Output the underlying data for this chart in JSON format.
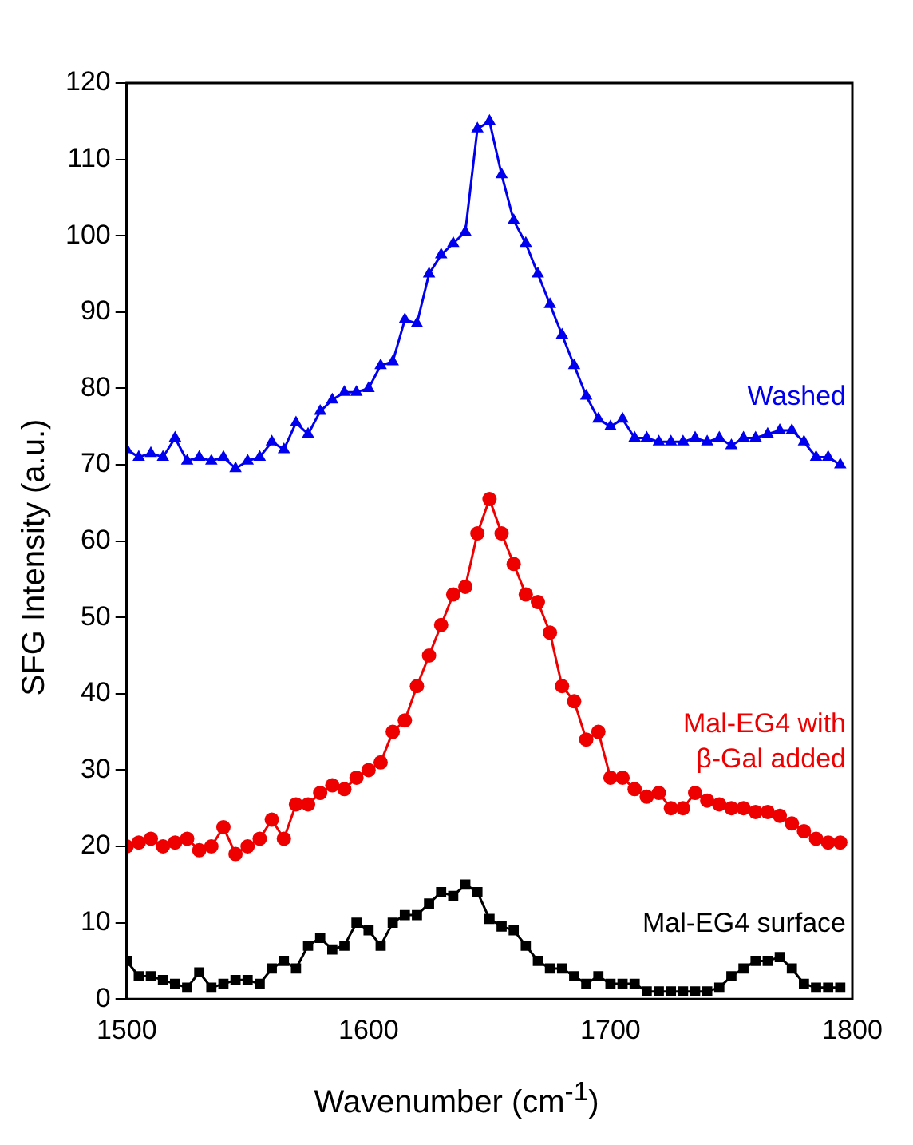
{
  "chart_data": {
    "type": "line",
    "xlabel": "Wavenumber (cm$^{-1}$)",
    "ylabel": "SFG Intensity (a.u.)",
    "x": [
      1500,
      1505,
      1510,
      1515,
      1520,
      1525,
      1530,
      1535,
      1540,
      1545,
      1550,
      1555,
      1560,
      1565,
      1570,
      1575,
      1580,
      1585,
      1590,
      1595,
      1600,
      1605,
      1610,
      1615,
      1620,
      1625,
      1630,
      1635,
      1640,
      1645,
      1650,
      1655,
      1660,
      1665,
      1670,
      1675,
      1680,
      1685,
      1690,
      1695,
      1700,
      1705,
      1710,
      1715,
      1720,
      1725,
      1730,
      1735,
      1740,
      1745,
      1750,
      1755,
      1760,
      1765,
      1770,
      1775,
      1780,
      1785,
      1790,
      1795
    ],
    "series": [
      {
        "name": "Washed",
        "color": "#0000ee",
        "marker": "triangle",
        "values": [
          72,
          71,
          71.5,
          71,
          73.5,
          70.5,
          71,
          70.5,
          71,
          69.5,
          70.5,
          71,
          73,
          72,
          75.5,
          74,
          77,
          78.5,
          79.5,
          79.5,
          80,
          83,
          83.5,
          89,
          88.5,
          95,
          97.5,
          99,
          100.5,
          114,
          115,
          108,
          102,
          99,
          95,
          91,
          87,
          83,
          79,
          76,
          75,
          76,
          73.5,
          73.5,
          73,
          73,
          73,
          73.5,
          73,
          73.5,
          72.5,
          73.5,
          73.5,
          74,
          74.5,
          74.5,
          73,
          71,
          71,
          70
        ]
      },
      {
        "name": "Mal-EG4 with\nβ-Gal added",
        "color": "#ee0000",
        "marker": "circle",
        "values": [
          20,
          20.5,
          21,
          20,
          20.5,
          21,
          19.5,
          20,
          22.5,
          19,
          20,
          21,
          23.5,
          21,
          25.5,
          25.5,
          27,
          28,
          27.5,
          29,
          30,
          31,
          35,
          36.5,
          41,
          45,
          49,
          53,
          54,
          61,
          65.5,
          61,
          57,
          53,
          52,
          48,
          41,
          39,
          34,
          35,
          29,
          29,
          27.5,
          26.5,
          27,
          25,
          25,
          27,
          26,
          25.5,
          25,
          25,
          24.5,
          24.5,
          24,
          23,
          22,
          21,
          20.5,
          20.5
        ]
      },
      {
        "name": "Mal-EG4 surface",
        "color": "#000000",
        "marker": "square",
        "values": [
          5,
          3,
          3,
          2.5,
          2,
          1.5,
          3.5,
          1.5,
          2,
          2.5,
          2.5,
          2,
          4,
          5,
          4,
          7,
          8,
          6.5,
          7,
          10,
          9,
          7,
          10,
          11,
          11,
          12.5,
          14,
          13.5,
          15,
          14,
          10.5,
          9.5,
          9,
          7,
          5,
          4,
          4,
          3,
          2,
          3,
          2,
          2,
          2,
          1,
          1,
          1,
          1,
          1,
          1,
          1.5,
          3,
          4,
          5,
          5,
          5.5,
          4,
          2,
          1.5,
          1.5,
          1.5
        ]
      }
    ],
    "xlim": [
      1500,
      1800
    ],
    "xticks": [
      1500,
      1600,
      1700,
      1800
    ],
    "ylim": [
      0,
      120
    ],
    "yticks": [
      0,
      10,
      20,
      30,
      40,
      50,
      60,
      70,
      80,
      90,
      100,
      110,
      120
    ],
    "grid": false,
    "legend": false,
    "line_style": "solid"
  }
}
